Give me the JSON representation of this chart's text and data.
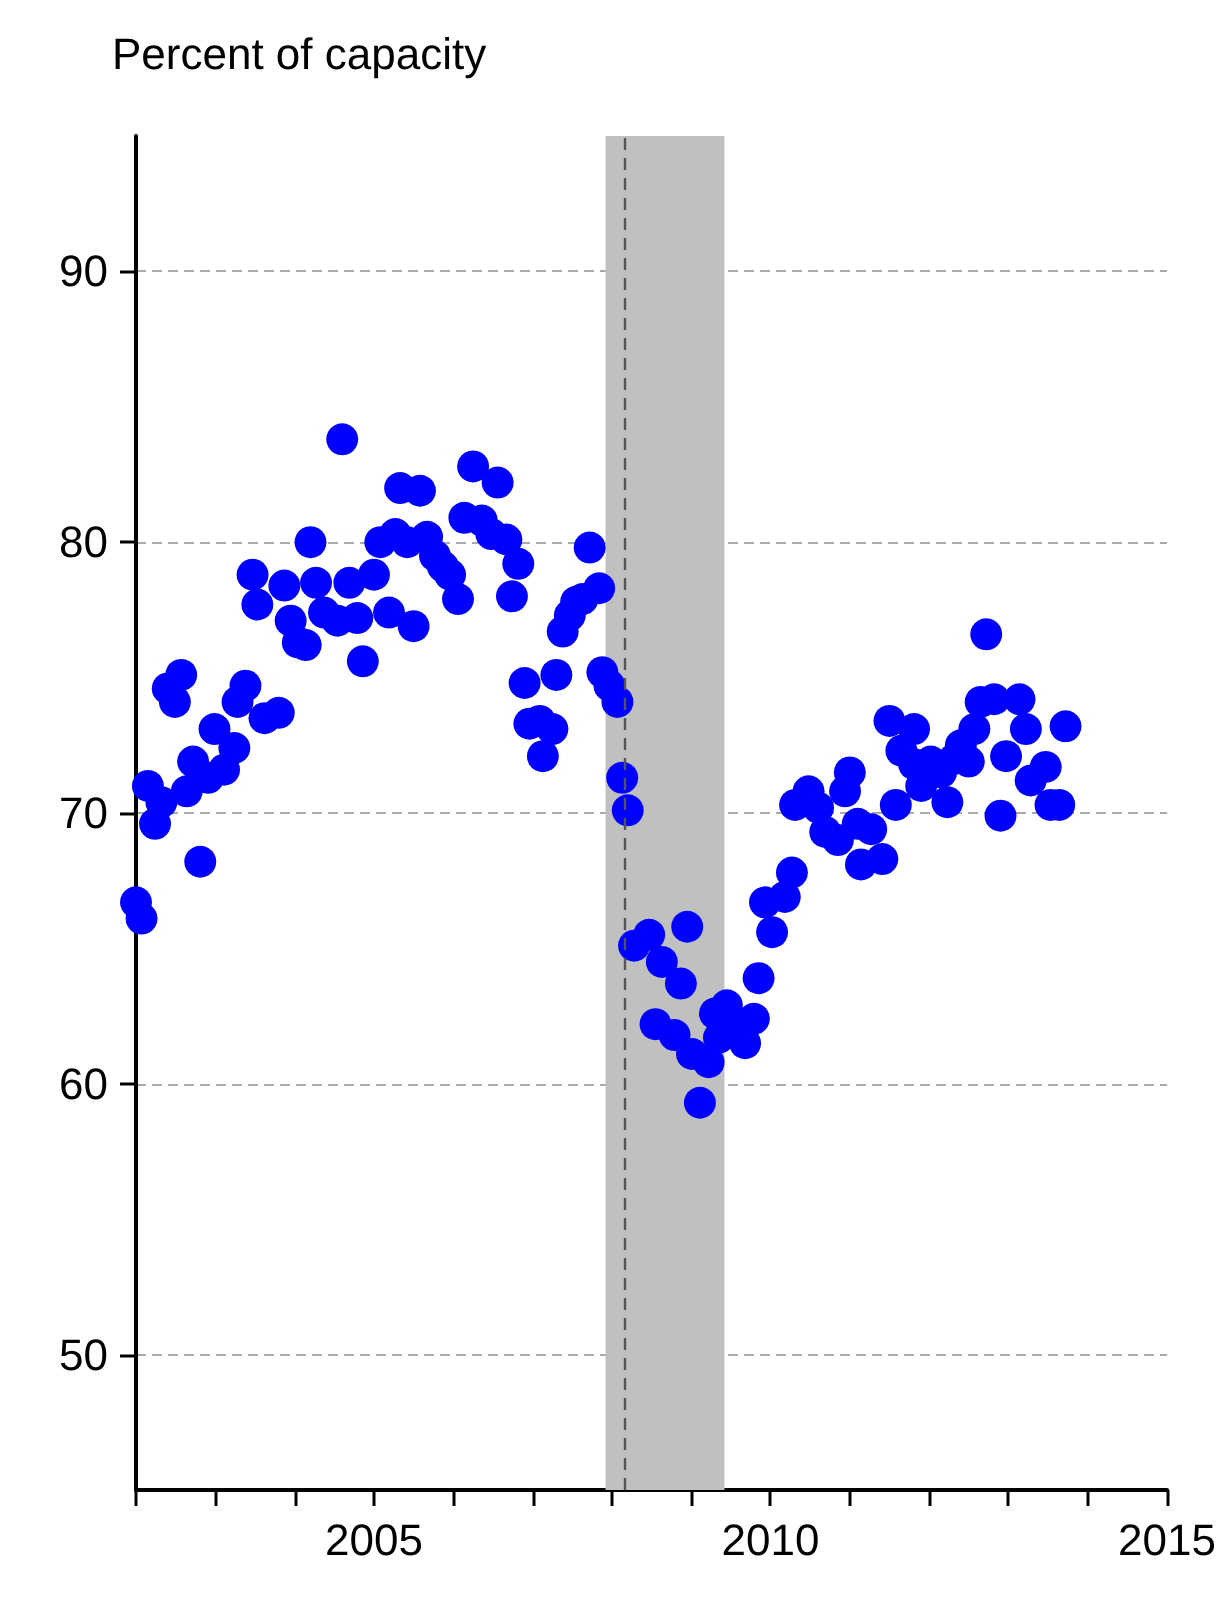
{
  "chart_data": {
    "type": "scatter",
    "ylabel": "Percent of capacity",
    "x": [
      2002.0,
      2002.07,
      2002.15,
      2002.24,
      2002.32,
      2002.4,
      2002.49,
      2002.57,
      2002.64,
      2002.72,
      2002.81,
      2002.91,
      2002.99,
      2003.11,
      2003.24,
      2003.28,
      2003.38,
      2003.47,
      2003.53,
      2003.62,
      2003.8,
      2003.87,
      2003.95,
      2004.04,
      2004.14,
      2004.2,
      2004.27,
      2004.37,
      2004.54,
      2004.6,
      2004.69,
      2004.79,
      2004.86,
      2005.0,
      2005.08,
      2005.19,
      2005.27,
      2005.33,
      2005.42,
      2005.5,
      2005.58,
      2005.67,
      2005.77,
      2005.87,
      2005.96,
      2006.06,
      2006.14,
      2006.25,
      2006.36,
      2006.48,
      2006.56,
      2006.67,
      2006.74,
      2006.82,
      2006.9,
      2006.96,
      2007.09,
      2007.13,
      2007.25,
      2007.3,
      2007.38,
      2007.47,
      2007.55,
      2007.63,
      2007.72,
      2007.84,
      2007.88,
      2007.97,
      2008.07,
      2008.13,
      2008.2,
      2008.28,
      2008.47,
      2008.55,
      2008.63,
      2008.79,
      2008.87,
      2008.95,
      2009.01,
      2009.11,
      2009.22,
      2009.3,
      2009.35,
      2009.45,
      2009.56,
      2009.68,
      2009.79,
      2009.85,
      2009.93,
      2010.02,
      2010.18,
      2010.27,
      2010.31,
      2010.48,
      2010.6,
      2010.69,
      2010.85,
      2010.94,
      2011.0,
      2011.1,
      2011.14,
      2011.27,
      2011.41,
      2011.5,
      2011.58,
      2011.65,
      2011.81,
      2011.81,
      2011.9,
      2012.02,
      2012.15,
      2012.23,
      2012.32,
      2012.4,
      2012.5,
      2012.57,
      2012.65,
      2012.72,
      2012.82,
      2012.9,
      2012.97,
      2013.14,
      2013.22,
      2013.28,
      2013.47,
      2013.53,
      2013.64,
      2013.72
    ],
    "values": [
      66.7,
      66.1,
      71.0,
      69.6,
      70.4,
      74.6,
      74.1,
      75.1,
      70.8,
      71.9,
      68.2,
      71.3,
      73.1,
      71.6,
      72.4,
      74.1,
      74.7,
      78.8,
      77.7,
      73.5,
      73.7,
      78.4,
      77.1,
      76.3,
      76.2,
      80.0,
      78.5,
      77.4,
      77.1,
      83.8,
      78.5,
      77.2,
      75.6,
      78.8,
      80.0,
      77.4,
      80.3,
      82.0,
      80.0,
      76.9,
      81.9,
      80.2,
      79.5,
      79.1,
      78.8,
      77.9,
      80.9,
      82.8,
      80.8,
      80.3,
      82.2,
      80.1,
      78.0,
      79.2,
      74.8,
      73.3,
      73.4,
      72.1,
      73.1,
      75.1,
      76.7,
      77.3,
      77.8,
      77.9,
      79.8,
      78.3,
      75.2,
      74.7,
      74.1,
      71.3,
      70.1,
      65.1,
      65.5,
      62.2,
      64.5,
      61.8,
      63.7,
      65.8,
      61.1,
      59.3,
      60.8,
      62.6,
      61.7,
      62.9,
      62.1,
      61.5,
      62.4,
      63.9,
      66.7,
      65.6,
      66.9,
      67.8,
      70.3,
      70.8,
      70.2,
      69.3,
      69.0,
      70.8,
      71.5,
      69.6,
      68.1,
      69.4,
      68.3,
      73.4,
      70.3,
      72.3,
      73.1,
      71.8,
      71.0,
      71.9,
      71.5,
      70.4,
      72.0,
      72.5,
      71.9,
      73.1,
      74.1,
      76.6,
      74.2,
      69.9,
      72.1,
      74.2,
      73.1,
      71.2,
      71.7,
      70.3,
      70.3,
      73.2
    ],
    "color": "#0000ff",
    "marker": "circle",
    "xlim": [
      2002,
      2015
    ],
    "xticks": [
      {
        "value": 2002,
        "label": null
      },
      {
        "value": 2003,
        "label": null
      },
      {
        "value": 2004,
        "label": null
      },
      2005,
      {
        "value": 2006,
        "label": null
      },
      {
        "value": 2007,
        "label": null
      },
      {
        "value": 2008,
        "label": null
      },
      {
        "value": 2009,
        "label": null
      },
      2010,
      {
        "value": 2011,
        "label": null
      },
      {
        "value": 2012,
        "label": null
      },
      {
        "value": 2013,
        "label": null
      },
      {
        "value": 2014,
        "label": null
      },
      2015
    ],
    "ylim": [
      45,
      95
    ],
    "yticks": [
      50,
      60,
      70,
      80,
      90
    ],
    "grid": "y",
    "bands": [
      {
        "axis": "x",
        "from": 2007.92,
        "to": 2009.42,
        "color": "#c0c0c0"
      }
    ],
    "ref_lines": [
      {
        "axis": "x",
        "value": 2008.17,
        "color": "#555555",
        "line_style": "dashed"
      }
    ]
  }
}
